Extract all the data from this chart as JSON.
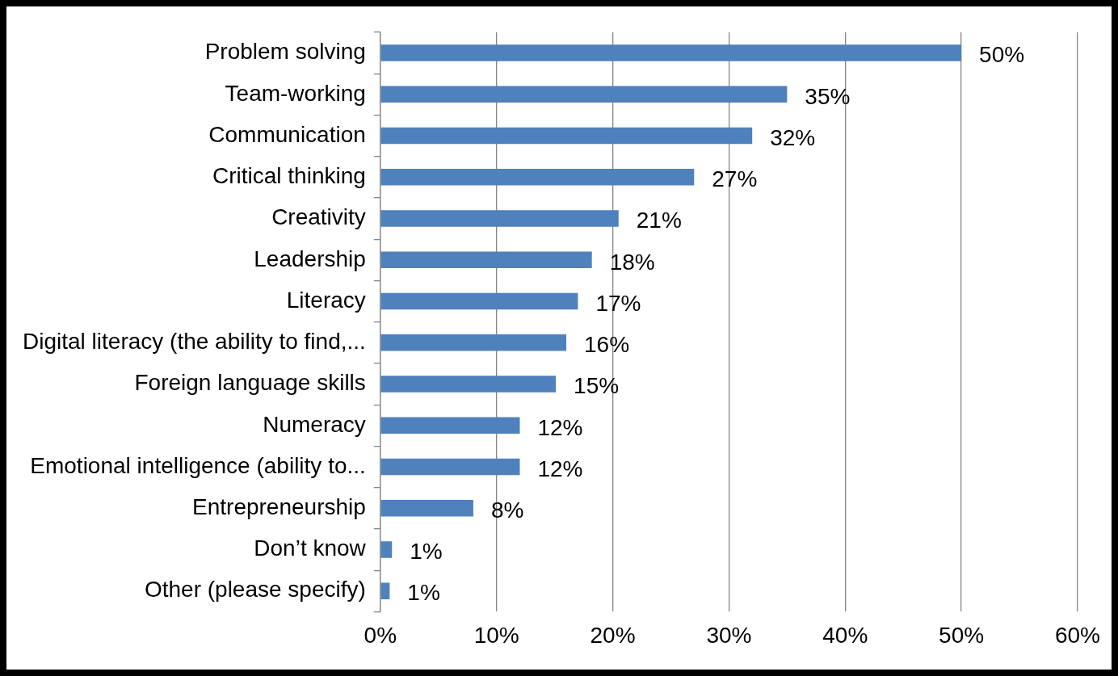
{
  "chart_data": {
    "type": "bar",
    "orientation": "horizontal",
    "categories": [
      "Problem solving",
      "Team-working",
      "Communication",
      "Critical thinking",
      "Creativity",
      "Leadership",
      "Literacy",
      "Digital literacy (the ability to find,...",
      "Foreign language skills",
      "Numeracy",
      "Emotional intelligence (ability to...",
      "Entrepreneurship",
      "Don’t know",
      "Other (please specify)"
    ],
    "values": [
      50,
      35,
      32,
      27,
      20.5,
      18.2,
      17,
      16,
      15.1,
      12,
      12,
      8,
      1,
      0.8
    ],
    "value_labels": [
      "50%",
      "35%",
      "32%",
      "27%",
      "21%",
      "18%",
      "17%",
      "16%",
      "15%",
      "12%",
      "12%",
      "8%",
      "1%",
      "1%"
    ],
    "color": "#4f81bd",
    "xlim": [
      0,
      60
    ],
    "xticks": [
      {
        "value": 0,
        "label": "0%"
      },
      {
        "value": 10,
        "label": "10%"
      },
      {
        "value": 20,
        "label": "20%"
      },
      {
        "value": 30,
        "label": "30%"
      },
      {
        "value": 40,
        "label": "40%"
      },
      {
        "value": 50,
        "label": "50%"
      },
      {
        "value": 60,
        "label": "60%"
      }
    ],
    "grid": "x",
    "legend": false
  }
}
